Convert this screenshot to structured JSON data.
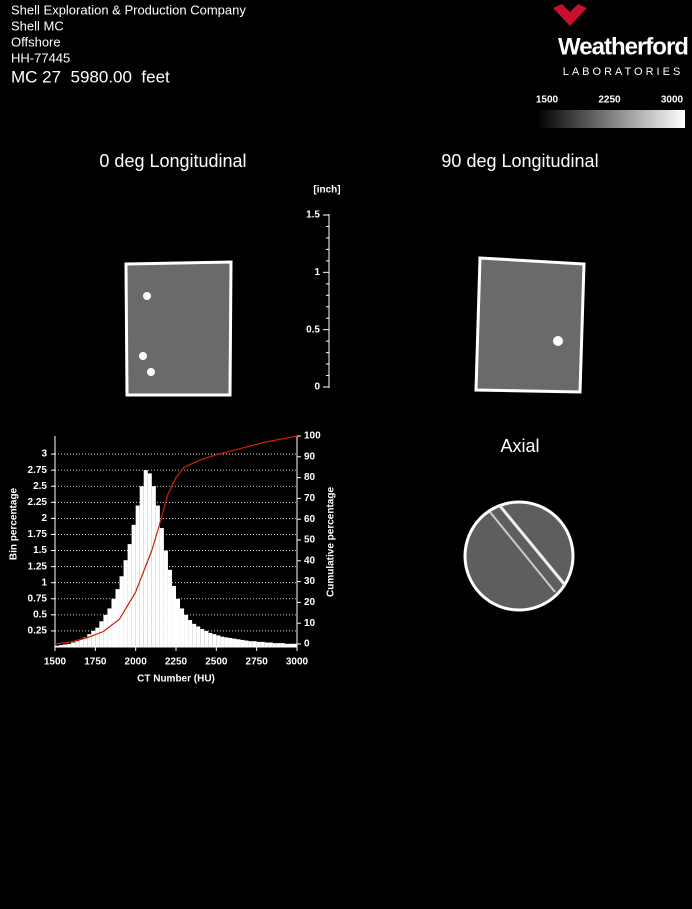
{
  "header": {
    "lines": [
      "Shell Exploration & Production Company",
      "Shell MC",
      "Offshore",
      "HH-77445"
    ],
    "depth": "MC 27  5980.00  feet"
  },
  "logo": {
    "name": "Weatherford",
    "subtitle": "LABORATORIES"
  },
  "colorbar": {
    "lim": [
      1500,
      3000
    ],
    "ticks": [
      1500,
      2250,
      3000
    ]
  },
  "views": [
    "0 deg Longitudinal",
    "90 deg Longitudinal",
    "Axial"
  ],
  "scale": {
    "unit": "[inch]",
    "ylim": [
      0,
      1.5
    ],
    "yticks": [
      0,
      0.5,
      1,
      1.5
    ]
  },
  "chart_data": {
    "type": "histogram",
    "xlabel": "CT Number (HU)",
    "ylabel": "Bin percentage",
    "y2label": "Cumulative percentage",
    "bins": [
      1500,
      1525,
      1550,
      1575,
      1600,
      1625,
      1650,
      1675,
      1700,
      1725,
      1750,
      1775,
      1800,
      1825,
      1850,
      1875,
      1900,
      1925,
      1950,
      1975,
      2000,
      2025,
      2050,
      2075,
      2100,
      2125,
      2150,
      2175,
      2200,
      2225,
      2250,
      2275,
      2300,
      2325,
      2350,
      2375,
      2400,
      2425,
      2450,
      2475,
      2500,
      2525,
      2550,
      2575,
      2600,
      2625,
      2650,
      2675,
      2700,
      2725,
      2750,
      2775,
      2800,
      2825,
      2850,
      2875,
      2900,
      2925,
      2950,
      2975,
      3000
    ],
    "counts": [
      0.02,
      0.03,
      0.04,
      0.05,
      0.07,
      0.09,
      0.12,
      0.15,
      0.2,
      0.25,
      0.3,
      0.4,
      0.5,
      0.6,
      0.75,
      0.9,
      1.1,
      1.35,
      1.6,
      1.9,
      2.2,
      2.5,
      2.75,
      2.7,
      2.5,
      2.2,
      1.85,
      1.5,
      1.2,
      0.95,
      0.75,
      0.6,
      0.5,
      0.42,
      0.36,
      0.32,
      0.28,
      0.25,
      0.22,
      0.2,
      0.18,
      0.16,
      0.15,
      0.14,
      0.13,
      0.12,
      0.11,
      0.1,
      0.09,
      0.09,
      0.08,
      0.08,
      0.07,
      0.07,
      0.06,
      0.06,
      0.06,
      0.05,
      0.05,
      0.05
    ],
    "color": "#ffffff",
    "cumulative": {
      "x": [
        1500,
        1600,
        1700,
        1800,
        1900,
        2000,
        2100,
        2150,
        2200,
        2250,
        2300,
        2400,
        2500,
        2600,
        2700,
        2800,
        2900,
        3000
      ],
      "values": [
        0,
        1,
        3,
        6,
        12,
        25,
        45,
        58,
        72,
        80,
        85,
        88.5,
        91,
        93,
        95,
        97,
        98.5,
        100
      ],
      "color": "#cc2200",
      "axis": "y2"
    },
    "xlim": [
      1500,
      3000
    ],
    "xticks": [
      1500,
      1750,
      2000,
      2250,
      2500,
      2750,
      3000
    ],
    "ylim": [
      0,
      3.25
    ],
    "yticks": [
      0.25,
      0.5,
      0.75,
      1,
      1.25,
      1.5,
      1.75,
      2,
      2.25,
      2.5,
      2.75,
      3
    ],
    "y2lim": [
      0,
      100
    ],
    "y2ticks": [
      0,
      10,
      20,
      30,
      40,
      50,
      60,
      70,
      80,
      90,
      100
    ],
    "grid": true
  }
}
